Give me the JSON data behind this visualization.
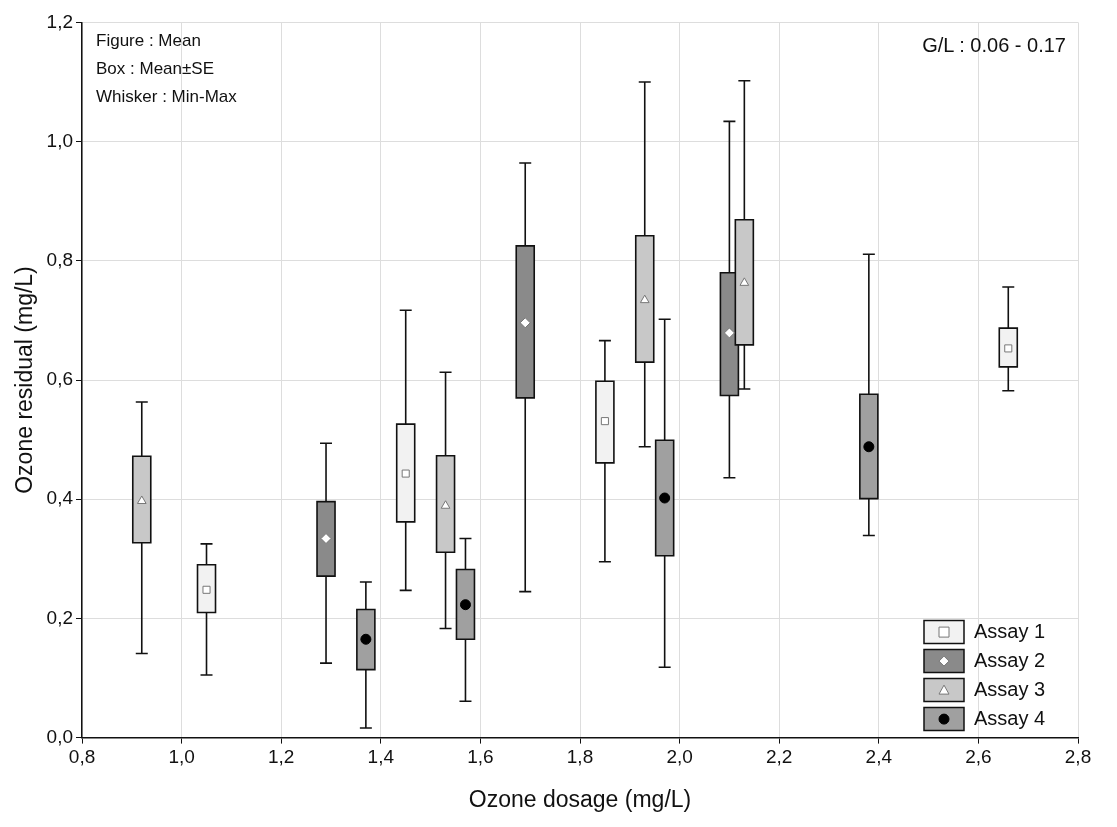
{
  "chart_data": {
    "type": "box",
    "xlabel": "Ozone dosage (mg/L)",
    "ylabel": "Ozone residual (mg/L)",
    "annotations": [
      "Figure : Mean",
      "Box : Mean±SE",
      "Whisker : Min-Max",
      "G/L : 0.06 - 0.17"
    ],
    "xlim": [
      0.8,
      2.8
    ],
    "xticks": [
      {
        "value": 0.8,
        "label": "0,8"
      },
      {
        "value": 1.0,
        "label": "1,0"
      },
      {
        "value": 1.2,
        "label": "1,2"
      },
      {
        "value": 1.4,
        "label": "1,4"
      },
      {
        "value": 1.6,
        "label": "1,6"
      },
      {
        "value": 1.8,
        "label": "1,8"
      },
      {
        "value": 2.0,
        "label": "2,0"
      },
      {
        "value": 2.2,
        "label": "2,2"
      },
      {
        "value": 2.4,
        "label": "2,4"
      },
      {
        "value": 2.6,
        "label": "2,6"
      },
      {
        "value": 2.8,
        "label": "2,8"
      }
    ],
    "ylim": [
      0,
      1.2
    ],
    "yticks": [
      {
        "value": 0,
        "label": "0,0"
      },
      {
        "value": 0.2,
        "label": "0,2"
      },
      {
        "value": 0.4,
        "label": "0,4"
      },
      {
        "value": 0.6,
        "label": "0,6"
      },
      {
        "value": 0.8,
        "label": "0,8"
      },
      {
        "value": 1.0,
        "label": "1,0"
      },
      {
        "value": 1.2,
        "label": "1,2"
      }
    ],
    "grid": true,
    "legend": "bottom right",
    "series": [
      {
        "name": "Assay 1",
        "color": "#f2f2f2",
        "marker": "square",
        "x": [
          1.05,
          1.45,
          1.85,
          2.66
        ],
        "boxes": [
          {
            "low": 0.105,
            "q1": 0.21,
            "q3": 0.29,
            "high": 0.325,
            "mean": 0.248
          },
          {
            "low": 0.247,
            "q1": 0.362,
            "q3": 0.526,
            "high": 0.717,
            "mean": 0.443
          },
          {
            "low": 0.295,
            "q1": 0.461,
            "q3": 0.598,
            "high": 0.666,
            "mean": 0.531
          },
          {
            "low": 0.582,
            "q1": 0.622,
            "q3": 0.687,
            "high": 0.756,
            "mean": 0.653
          }
        ]
      },
      {
        "name": "Assay 2",
        "color": "#8a8a8a",
        "marker": "diamond",
        "x": [
          1.29,
          1.69,
          2.1
        ],
        "boxes": [
          {
            "low": 0.125,
            "q1": 0.271,
            "q3": 0.396,
            "high": 0.494,
            "mean": 0.334
          },
          {
            "low": 0.245,
            "q1": 0.57,
            "q3": 0.825,
            "high": 0.964,
            "mean": 0.696
          },
          {
            "low": 0.436,
            "q1": 0.574,
            "q3": 0.78,
            "high": 1.034,
            "mean": 0.679
          }
        ]
      },
      {
        "name": "Assay 3",
        "color": "#c8c8c8",
        "marker": "triangle",
        "x": [
          0.92,
          1.53,
          1.93,
          2.13
        ],
        "boxes": [
          {
            "low": 0.141,
            "q1": 0.327,
            "q3": 0.472,
            "high": 0.563,
            "mean": 0.397
          },
          {
            "low": 0.183,
            "q1": 0.311,
            "q3": 0.473,
            "high": 0.613,
            "mean": 0.389
          },
          {
            "low": 0.488,
            "q1": 0.63,
            "q3": 0.842,
            "high": 1.1,
            "mean": 0.734
          },
          {
            "low": 0.585,
            "q1": 0.659,
            "q3": 0.869,
            "high": 1.102,
            "mean": 0.763
          }
        ]
      },
      {
        "name": "Assay 4",
        "color": "#a0a0a0",
        "marker": "circle",
        "x": [
          1.37,
          1.57,
          1.97,
          2.38
        ],
        "boxes": [
          {
            "low": 0.016,
            "q1": 0.114,
            "q3": 0.215,
            "high": 0.261,
            "mean": 0.165
          },
          {
            "low": 0.061,
            "q1": 0.165,
            "q3": 0.282,
            "high": 0.334,
            "mean": 0.223
          },
          {
            "low": 0.118,
            "q1": 0.305,
            "q3": 0.499,
            "high": 0.702,
            "mean": 0.402
          },
          {
            "low": 0.339,
            "q1": 0.401,
            "q3": 0.576,
            "high": 0.811,
            "mean": 0.488
          }
        ]
      }
    ]
  }
}
